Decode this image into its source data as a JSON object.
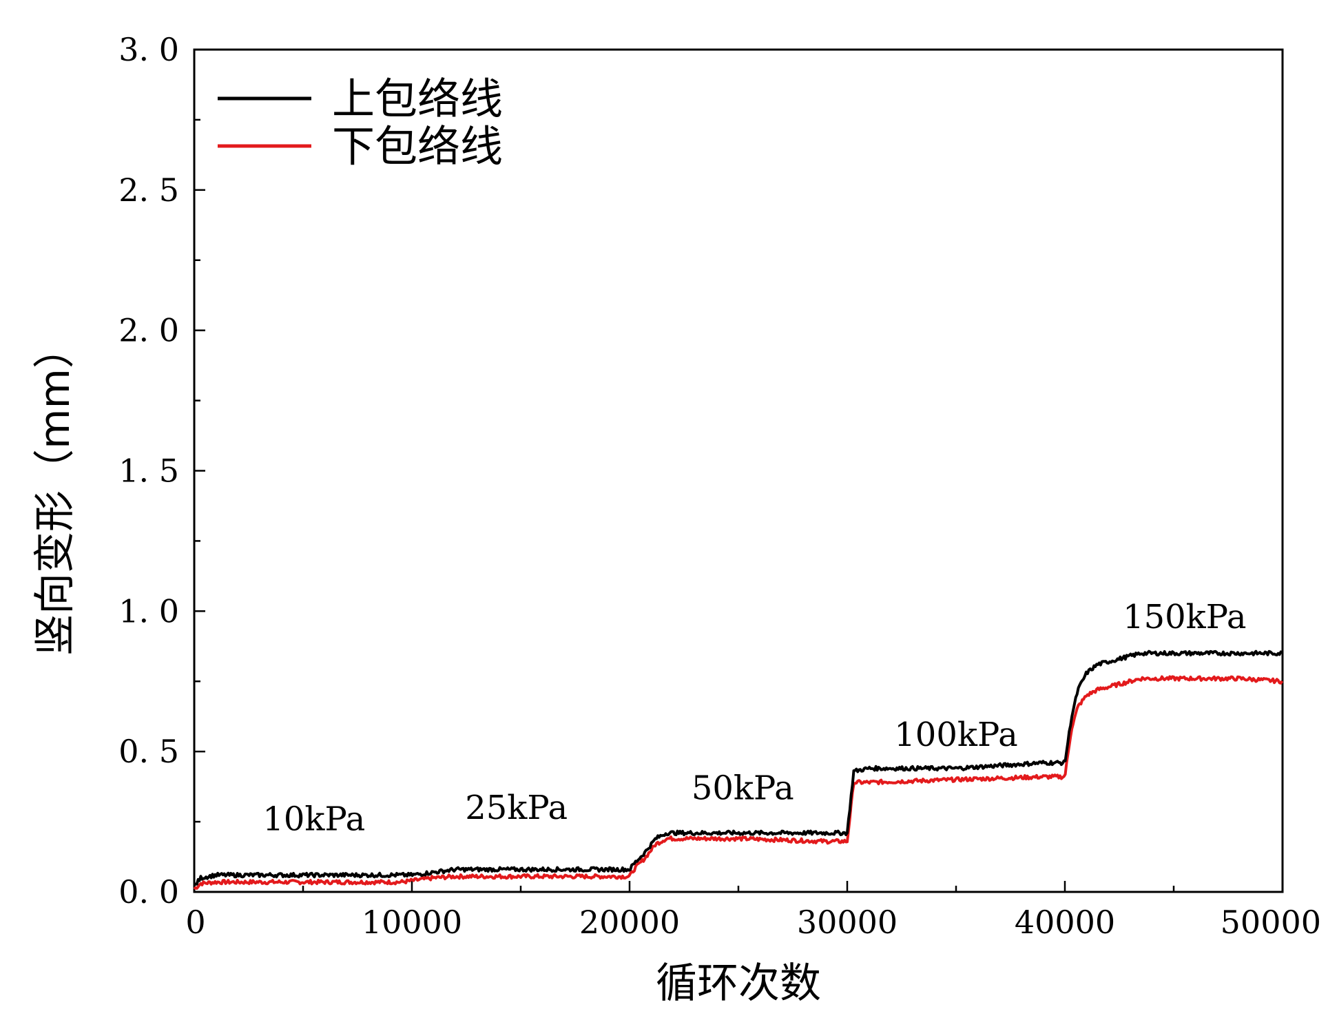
{
  "chart_data": {
    "type": "line",
    "title": "",
    "xlabel": "循环次数",
    "ylabel": "竖向变形（mm）",
    "xlim": [
      0,
      50000
    ],
    "ylim": [
      0,
      3.0
    ],
    "x_ticks": [
      0,
      10000,
      20000,
      30000,
      40000,
      50000
    ],
    "x_tick_labels": [
      "0",
      "10000",
      "20000",
      "30000",
      "40000",
      "50000"
    ],
    "y_ticks": [
      0,
      0.5,
      1.0,
      1.5,
      2.0,
      2.5,
      3.0
    ],
    "y_tick_labels": [
      "0. 0",
      "0. 5",
      "1. 0",
      "1. 5",
      "2. 0",
      "2. 5",
      "3. 0"
    ],
    "legend_position": "top-left",
    "series": [
      {
        "name": "上包络线",
        "color": "#000000",
        "x": [
          0,
          300,
          1000,
          5000,
          9500,
          10000,
          11000,
          12000,
          15000,
          19000,
          20000,
          20200,
          20700,
          21200,
          21700,
          22500,
          25000,
          29000,
          29900,
          30000,
          30300,
          31000,
          35000,
          39000,
          39900,
          40000,
          40300,
          40600,
          41000,
          41500,
          42000,
          42500,
          43000,
          43500,
          44000,
          46000,
          48000,
          50000
        ],
        "values": [
          0.02,
          0.05,
          0.06,
          0.06,
          0.06,
          0.06,
          0.07,
          0.08,
          0.08,
          0.08,
          0.08,
          0.1,
          0.14,
          0.19,
          0.21,
          0.21,
          0.21,
          0.21,
          0.21,
          0.21,
          0.43,
          0.44,
          0.44,
          0.46,
          0.46,
          0.46,
          0.62,
          0.72,
          0.78,
          0.81,
          0.82,
          0.83,
          0.84,
          0.85,
          0.85,
          0.85,
          0.85,
          0.85
        ]
      },
      {
        "name": "下包络线",
        "color": "#e31a1c",
        "x": [
          0,
          300,
          1000,
          5000,
          9500,
          10000,
          11000,
          12000,
          15000,
          19000,
          20000,
          20200,
          20700,
          21200,
          21700,
          22500,
          25000,
          29000,
          29900,
          30000,
          30300,
          31000,
          35000,
          39000,
          39900,
          40000,
          40300,
          40600,
          41000,
          41500,
          42000,
          42500,
          43000,
          43500,
          44000,
          46000,
          48000,
          50000
        ],
        "values": [
          0.01,
          0.03,
          0.035,
          0.035,
          0.035,
          0.04,
          0.05,
          0.055,
          0.055,
          0.055,
          0.055,
          0.08,
          0.12,
          0.17,
          0.19,
          0.19,
          0.19,
          0.18,
          0.18,
          0.18,
          0.39,
          0.39,
          0.4,
          0.41,
          0.41,
          0.41,
          0.58,
          0.66,
          0.7,
          0.72,
          0.73,
          0.74,
          0.75,
          0.76,
          0.76,
          0.76,
          0.76,
          0.75
        ]
      }
    ],
    "annotations": [
      {
        "text": "10kPa",
        "x": 5500,
        "y": 0.22
      },
      {
        "text": "25kPa",
        "x": 14800,
        "y": 0.26
      },
      {
        "text": "50kPa",
        "x": 25200,
        "y": 0.33
      },
      {
        "text": "100kPa",
        "x": 35000,
        "y": 0.52
      },
      {
        "text": "150kPa",
        "x": 45500,
        "y": 0.94
      }
    ]
  }
}
